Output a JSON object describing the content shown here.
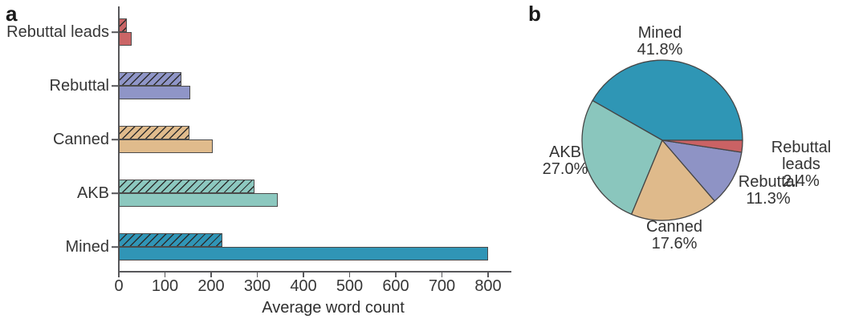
{
  "panels": {
    "a_label": "a",
    "b_label": "b"
  },
  "chart_data": [
    {
      "panel": "a",
      "type": "bar",
      "orientation": "horizontal",
      "title": "",
      "xlabel": "Average word count",
      "categories_top_to_bottom": [
        "Rebuttal leads",
        "Rebuttal",
        "Canned",
        "AKB",
        "Mined"
      ],
      "series": [
        {
          "name": "hatched",
          "style": "hatched",
          "values": [
            18,
            136,
            153,
            294,
            224
          ]
        },
        {
          "name": "solid",
          "style": "solid",
          "values": [
            27,
            155,
            203,
            344,
            800
          ]
        }
      ],
      "xlim": [
        0,
        800
      ],
      "xticks": [
        0,
        100,
        200,
        300,
        400,
        500,
        600,
        700,
        800
      ],
      "grid": false,
      "colors": {
        "Rebuttal leads": "#cb6566",
        "Rebuttal": "#8f95c7",
        "Canned": "#e0bb8c",
        "AKB": "#8cc8bf",
        "Mined": "#3095b6"
      }
    },
    {
      "panel": "b",
      "type": "pie",
      "start_angle_deg": 0,
      "direction": "counterclockwise",
      "slices": [
        {
          "label": "Mined",
          "value": 41.8,
          "pct_label": "41.8%",
          "color": "#2f96b5"
        },
        {
          "label": "AKB",
          "value": 27.0,
          "pct_label": "27.0%",
          "color": "#8ac6bd"
        },
        {
          "label": "Canned",
          "value": 17.6,
          "pct_label": "17.6%",
          "color": "#dfba8b"
        },
        {
          "label": "Rebuttal",
          "value": 11.3,
          "pct_label": "11.3%",
          "color": "#8e93c5"
        },
        {
          "label": "Rebuttal leads",
          "value": 2.4,
          "pct_label": "2.4%",
          "color": "#ca6264"
        }
      ]
    }
  ]
}
